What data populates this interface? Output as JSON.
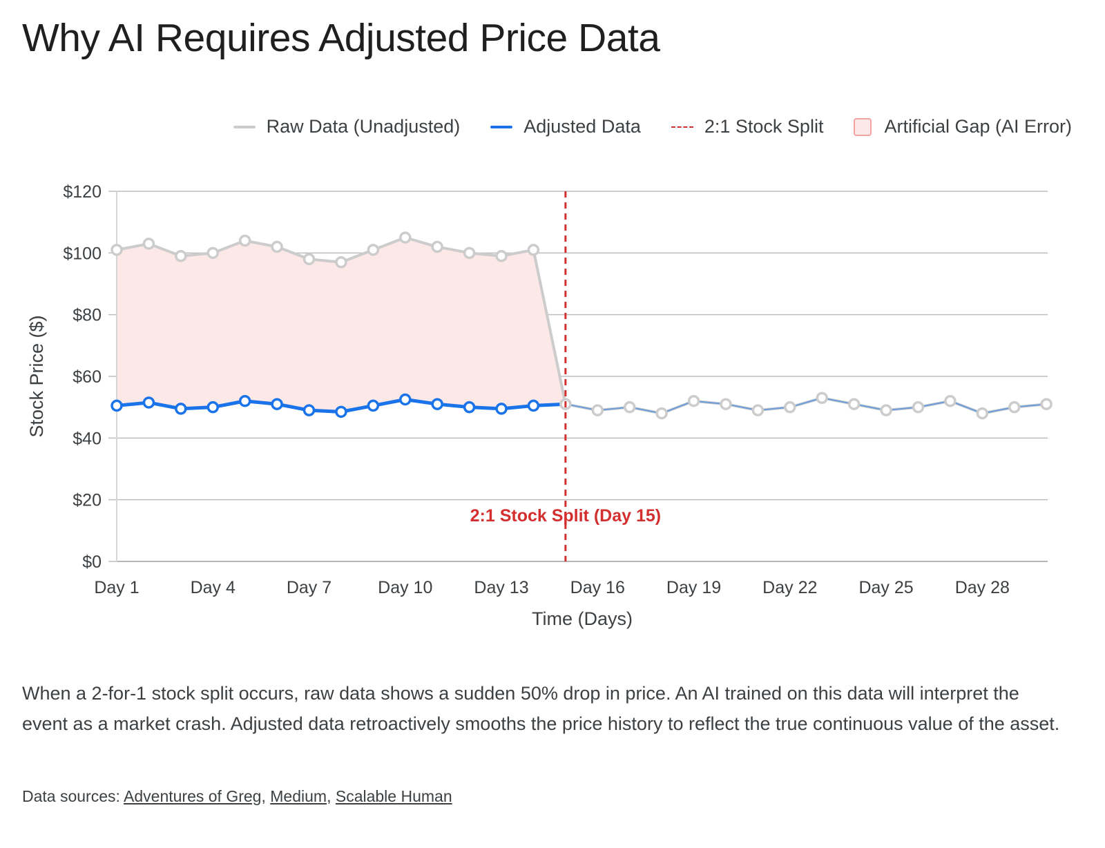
{
  "page": {
    "title": "Why AI Requires Adjusted Price Data",
    "caption": "When a 2-for-1 stock split occurs, raw data shows a sudden 50% drop in price. An AI trained on this data will interpret the event as a market crash. Adjusted data retroactively smooths the price history to reflect the true continuous value of the asset.",
    "sources_label": "Data sources:",
    "sources": [
      "Adventures of Greg",
      "Medium",
      "Scalable Human"
    ]
  },
  "colors": {
    "raw": "#cccccc",
    "adjusted": "#1a73e8",
    "split": "#d32f2f",
    "gap_fill": "#fde8e8",
    "gap_border": "#f4a3a3",
    "grid": "#bdbdbd"
  },
  "chart_data": {
    "type": "line",
    "title": "Why AI Requires Adjusted Price Data",
    "xlabel": "Time (Days)",
    "ylabel": "Stock Price ($)",
    "ylim": [
      0,
      120
    ],
    "yticks": [
      "$0",
      "$20",
      "$40",
      "$60",
      "$80",
      "$100",
      "$120"
    ],
    "ytick_values": [
      0,
      20,
      40,
      60,
      80,
      100,
      120
    ],
    "x": [
      1,
      2,
      3,
      4,
      5,
      6,
      7,
      8,
      9,
      10,
      11,
      12,
      13,
      14,
      15,
      16,
      17,
      18,
      19,
      20,
      21,
      22,
      23,
      24,
      25,
      26,
      27,
      28,
      29,
      30
    ],
    "xtick_labels": [
      "Day 1",
      "Day 4",
      "Day 7",
      "Day 10",
      "Day 13",
      "Day 16",
      "Day 19",
      "Day 22",
      "Day 25",
      "Day 28"
    ],
    "xtick_values": [
      1,
      4,
      7,
      10,
      13,
      16,
      19,
      22,
      25,
      28
    ],
    "grid": true,
    "legend_position": "top-right",
    "legend": [
      "Raw Data (Unadjusted)",
      "Adjusted Data",
      "2:1 Stock Split",
      "Artificial Gap (AI Error)"
    ],
    "series": [
      {
        "name": "Raw Data (Unadjusted)",
        "values": [
          101,
          103,
          99,
          100,
          104,
          102,
          98,
          97,
          101,
          105,
          102,
          100,
          99,
          101,
          51,
          49,
          50,
          48,
          52,
          51,
          49,
          50,
          53,
          51,
          49,
          50,
          52,
          48,
          50,
          51
        ]
      },
      {
        "name": "Adjusted Data",
        "values": [
          50.5,
          51.5,
          49.5,
          50,
          52,
          51,
          49,
          48.5,
          50.5,
          52.5,
          51,
          50,
          49.5,
          50.5,
          51,
          49,
          50,
          48,
          52,
          51,
          49,
          50,
          53,
          51,
          49,
          50,
          52,
          48,
          50,
          51
        ]
      }
    ],
    "split_day": 15,
    "annotation": "2:1 Stock Split (Day 15)"
  }
}
